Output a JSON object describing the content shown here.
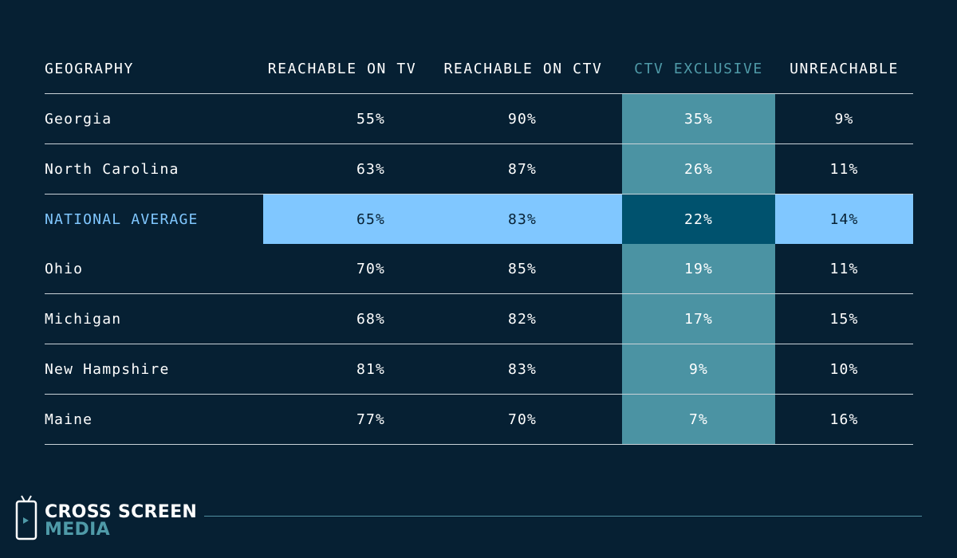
{
  "chart_data": {
    "type": "table",
    "columns": [
      "GEOGRAPHY",
      "REACHABLE ON TV",
      "REACHABLE ON CTV",
      "CTV EXCLUSIVE",
      "UNREACHABLE"
    ],
    "highlighted_column": "CTV EXCLUSIVE",
    "highlighted_row": "NATIONAL AVERAGE",
    "rows": [
      {
        "geography": "Georgia",
        "tv": "55%",
        "ctv": "90%",
        "ctv_exclusive": "35%",
        "unreachable": "9%"
      },
      {
        "geography": "North Carolina",
        "tv": "63%",
        "ctv": "87%",
        "ctv_exclusive": "26%",
        "unreachable": "11%"
      },
      {
        "geography": "NATIONAL AVERAGE",
        "tv": "65%",
        "ctv": "83%",
        "ctv_exclusive": "22%",
        "unreachable": "14%"
      },
      {
        "geography": "Ohio",
        "tv": "70%",
        "ctv": "85%",
        "ctv_exclusive": "19%",
        "unreachable": "11%"
      },
      {
        "geography": "Michigan",
        "tv": "68%",
        "ctv": "82%",
        "ctv_exclusive": "17%",
        "unreachable": "15%"
      },
      {
        "geography": "New Hampshire",
        "tv": "81%",
        "ctv": "83%",
        "ctv_exclusive": "9%",
        "unreachable": "10%"
      },
      {
        "geography": "Maine",
        "tv": "77%",
        "ctv": "70%",
        "ctv_exclusive": "7%",
        "unreachable": "16%"
      }
    ]
  },
  "footer": {
    "brand_line_1": "CROSS SCREEN",
    "brand_line_2": "MEDIA",
    "logo_icon": "tv-play-icon"
  },
  "colors": {
    "background": "#062033",
    "band": "#4b93a3",
    "highlight_row": "#80c7ff",
    "highlight_cell": "#00526e",
    "header_accent": "#4f9aa8"
  }
}
